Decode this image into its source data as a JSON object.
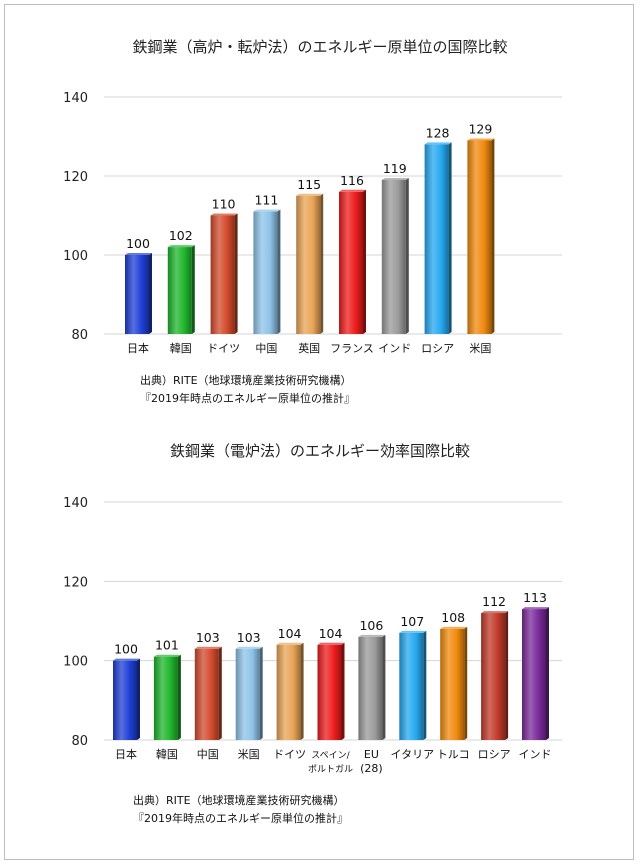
{
  "chart_data": [
    {
      "type": "bar",
      "title": "鉄鋼業（高炉・転炉法）のエネルギー原単位の国際比較",
      "xlabel": "",
      "ylabel": "",
      "ylim": [
        80,
        140
      ],
      "yticks": [
        80,
        100,
        120,
        140
      ],
      "grid": true,
      "categories": [
        "日本",
        "韓国",
        "ドイツ",
        "中国",
        "英国",
        "フランス",
        "インド",
        "ロシア",
        "米国"
      ],
      "values": [
        100,
        102,
        110,
        111,
        115,
        116,
        119,
        128,
        129
      ],
      "colors": [
        "#1f3fd6",
        "#1fb52c",
        "#d24a2c",
        "#8ec3e8",
        "#e8a456",
        "#ee1c1c",
        "#9a9a9a",
        "#26a8f0",
        "#f08a0c"
      ],
      "source": "出典）RITE（地球環境産業技術研究機構）",
      "source_note": "『2019年時点のエネルギー原単位の推計』"
    },
    {
      "type": "bar",
      "title": "鉄鋼業（電炉法）のエネルギー効率国際比較",
      "xlabel": "",
      "ylabel": "",
      "ylim": [
        80,
        140
      ],
      "yticks": [
        80,
        100,
        120,
        140
      ],
      "grid": true,
      "categories": [
        "日本",
        "韓国",
        "中国",
        "米国",
        "ドイツ",
        "スペイン/ポルトガル",
        "EU（28）",
        "イタリア",
        "トルコ",
        "ロシア",
        "インド"
      ],
      "category_lines": [
        [
          "日本"
        ],
        [
          "韓国"
        ],
        [
          "中国"
        ],
        [
          "米国"
        ],
        [
          "ドイツ"
        ],
        [
          "スペイン/",
          "ポルトガル"
        ],
        [
          "EU",
          "(28)"
        ],
        [
          "イタリア"
        ],
        [
          "トルコ"
        ],
        [
          "ロシア"
        ],
        [
          "インド"
        ]
      ],
      "values": [
        100,
        101,
        103,
        103,
        104,
        104,
        106,
        107,
        108,
        112,
        113
      ],
      "colors": [
        "#1f3fd6",
        "#1fb52c",
        "#d24a2c",
        "#8ec3e8",
        "#e8a456",
        "#ee1c1c",
        "#9a9a9a",
        "#26a8f0",
        "#f08a0c",
        "#c23a2a",
        "#7a2a9a"
      ],
      "source": "出典）RITE（地球環境産業技術研究機構）",
      "source_note": "『2019年時点のエネルギー原単位の推計』"
    }
  ]
}
